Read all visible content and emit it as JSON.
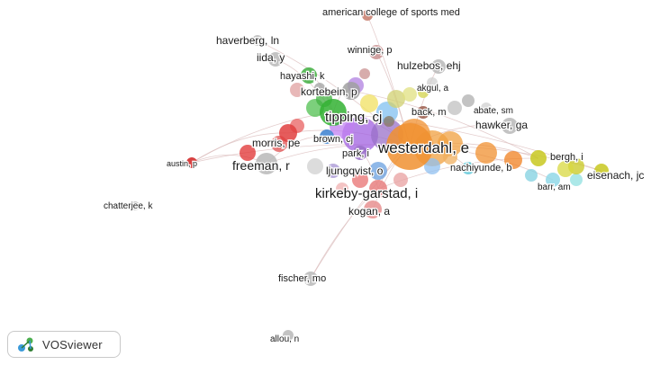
{
  "app": {
    "logo_text": "VOSviewer",
    "logo_icon": "vosviewer-icon"
  },
  "network": {
    "nodes": [
      {
        "id": "acsm",
        "label": "american college of sports med",
        "color": "#c77b6b"
      },
      {
        "id": "haverberg",
        "label": "haverberg, ln",
        "color": "#b8b8b8"
      },
      {
        "id": "iida",
        "label": "iida, y",
        "color": "#b8b8b8"
      },
      {
        "id": "winnige",
        "label": "winnige, p",
        "color": "#c99090"
      },
      {
        "id": "hulzebos",
        "label": "hulzebos, ehj",
        "color": "#b8b8b8"
      },
      {
        "id": "hayashi",
        "label": "hayashi, k",
        "color": "#3fae3f"
      },
      {
        "id": "akgul",
        "label": "akgul, a",
        "color": "#d8d860"
      },
      {
        "id": "kortebein",
        "label": "kortebein, p",
        "color": "#a0a0a0"
      },
      {
        "id": "abate",
        "label": "abate, sm",
        "color": "#b8b8b8"
      },
      {
        "id": "back",
        "label": "back, m",
        "color": "#9a5a4a"
      },
      {
        "id": "tipping",
        "label": "tipping, cj",
        "color": "#33b233"
      },
      {
        "id": "hawker",
        "label": "hawker, ga",
        "color": "#b8b8b8"
      },
      {
        "id": "brown",
        "label": "brown, cj",
        "color": "#3a7fd0"
      },
      {
        "id": "westerdahl",
        "label": "westerdahl, e",
        "color": "#f09030"
      },
      {
        "id": "morris",
        "label": "morris, pe",
        "color": "#e04040"
      },
      {
        "id": "park",
        "label": "park, i",
        "color": "#9a70c8"
      },
      {
        "id": "bergh",
        "label": "bergh, i",
        "color": "#c8c820"
      },
      {
        "id": "austin",
        "label": "austin, p",
        "color": "#d02020"
      },
      {
        "id": "freeman",
        "label": "freeman, r",
        "color": "#b8b8b8"
      },
      {
        "id": "ljungqvist",
        "label": "ljungqvist, o",
        "color": "#b0a0d8"
      },
      {
        "id": "nachiyunde",
        "label": "nachiyunde, b",
        "color": "#60c8d8"
      },
      {
        "id": "eisenach",
        "label": "eisenach, jc",
        "color": "#c8c820"
      },
      {
        "id": "barr",
        "label": "barr, am",
        "color": "#90d8e8"
      },
      {
        "id": "kirkeby",
        "label": "kirkeby-garstad, i",
        "color": "#e88080"
      },
      {
        "id": "chatterjee",
        "label": "chatterjee, k",
        "color": "#b8b8b8"
      },
      {
        "id": "kogan",
        "label": "kogan, a",
        "color": "#e89090"
      },
      {
        "id": "fischer",
        "label": "fischer, mo",
        "color": "#b8b8b8"
      },
      {
        "id": "allou",
        "label": "allou, n",
        "color": "#b8b8b8"
      }
    ],
    "edge_color": "#d9b8b8"
  }
}
